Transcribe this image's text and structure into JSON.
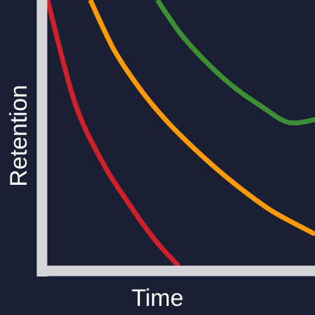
{
  "chart_data": {
    "type": "line",
    "title": "",
    "xlabel": "Time",
    "ylabel": "Retention",
    "xlim": [
      0,
      1
    ],
    "ylim": [
      0,
      1
    ],
    "grid": false,
    "legend": "none",
    "axis_color": "#d6d6da",
    "background": "#1b1f33",
    "series": [
      {
        "color": "#d0202a",
        "x": [
          0.0,
          0.1,
          0.2,
          0.3,
          0.4,
          0.49
        ],
        "y": [
          1.0,
          0.62,
          0.4,
          0.24,
          0.1,
          0.0
        ]
      },
      {
        "color": "#ff9a00",
        "x": [
          0.16,
          0.25,
          0.35,
          0.45,
          0.55,
          0.65,
          0.75,
          0.85,
          1.0
        ],
        "y": [
          1.0,
          0.81,
          0.66,
          0.54,
          0.44,
          0.35,
          0.27,
          0.2,
          0.12
        ]
      },
      {
        "color": "#3c8f32",
        "x": [
          0.41,
          0.5,
          0.6,
          0.7,
          0.8,
          0.9,
          1.0
        ],
        "y": [
          1.0,
          0.87,
          0.76,
          0.67,
          0.6,
          0.54,
          0.55
        ]
      }
    ]
  }
}
